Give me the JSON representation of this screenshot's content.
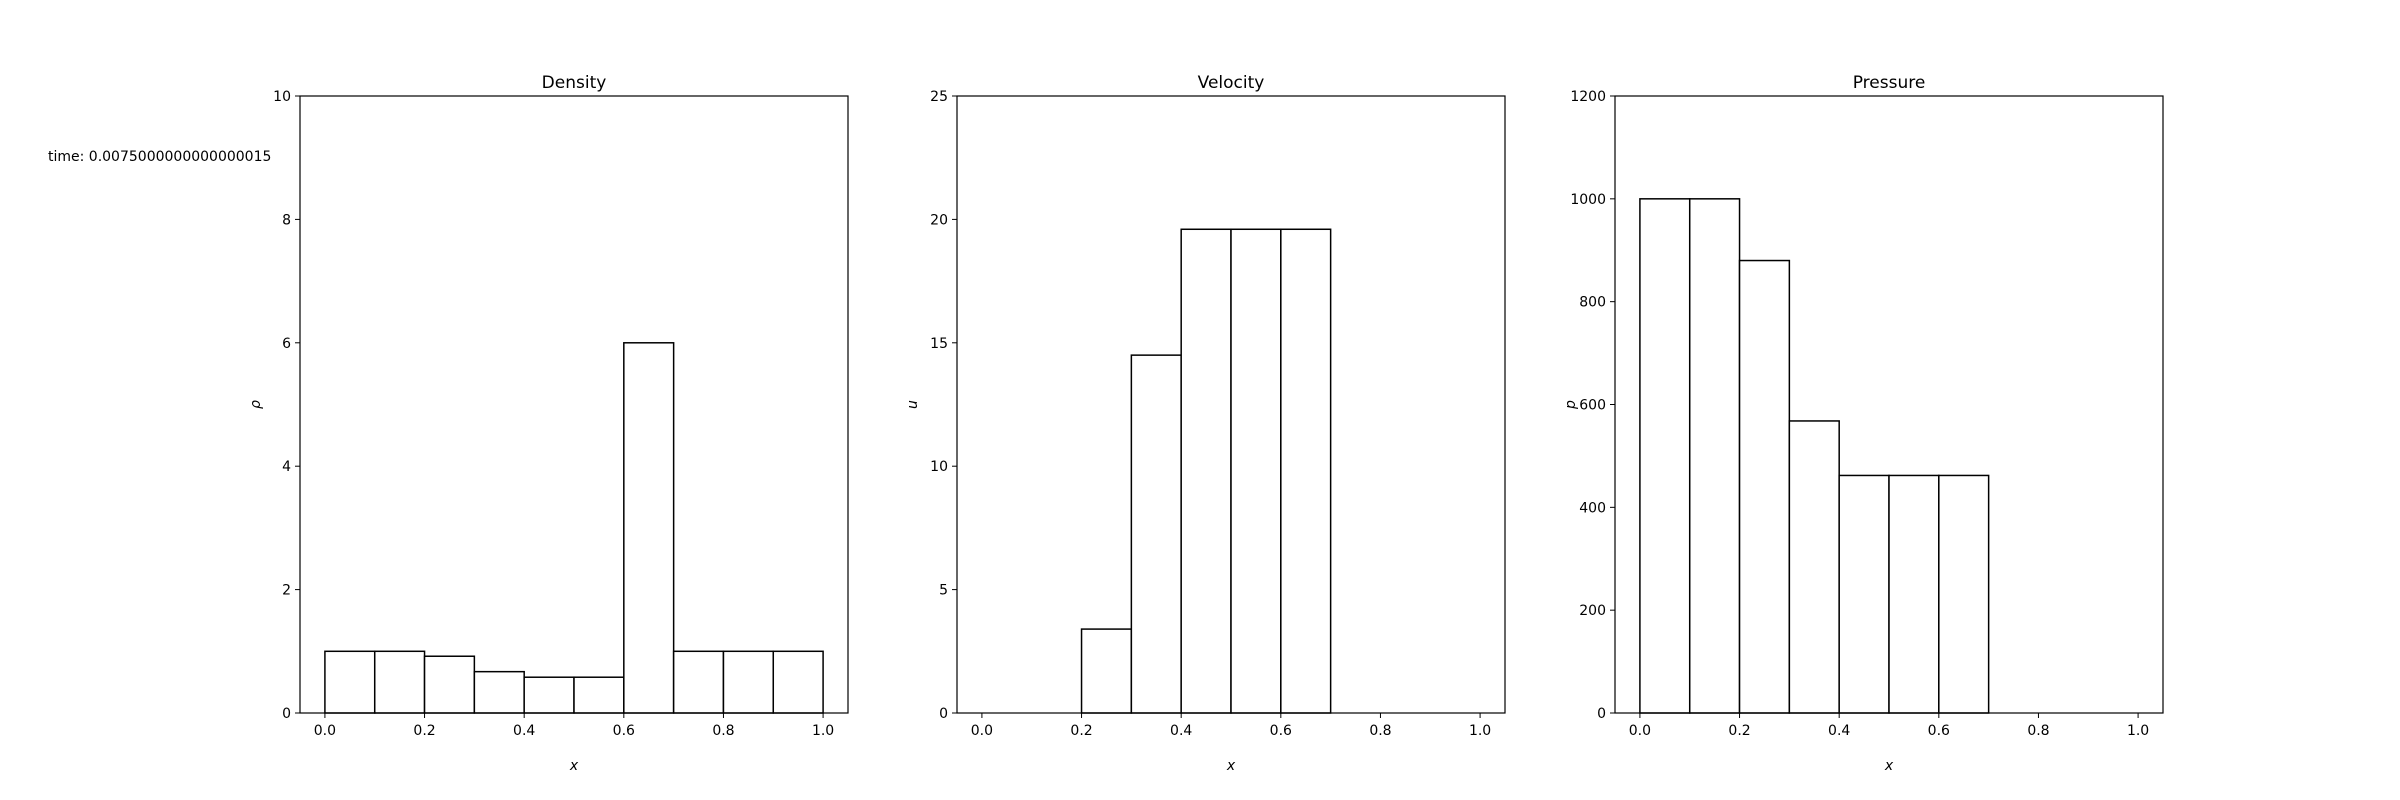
{
  "annotation": "time: 0.0075000000000000015",
  "colors": {
    "bar_fill": "#ffffff",
    "bar_edge": "#000000",
    "axes": "#000000"
  },
  "chart_data": [
    {
      "type": "bar",
      "title": "Density",
      "xlabel": "x",
      "ylabel": "ρ",
      "bin_edges": [
        0.0,
        0.1,
        0.2,
        0.3,
        0.4,
        0.5,
        0.6,
        0.7,
        0.8,
        0.9,
        1.0
      ],
      "values": [
        1.0,
        1.0,
        0.92,
        0.67,
        0.58,
        0.58,
        6.0,
        1.0,
        1.0,
        1.0
      ],
      "xlim": [
        -0.05,
        1.05
      ],
      "ylim": [
        0,
        10
      ],
      "xticks": [
        "0.0",
        "0.2",
        "0.4",
        "0.6",
        "0.8",
        "1.0"
      ],
      "yticks": [
        "0",
        "2",
        "4",
        "6",
        "8",
        "10"
      ],
      "grid": false
    },
    {
      "type": "bar",
      "title": "Velocity",
      "xlabel": "x",
      "ylabel": "u",
      "bin_edges": [
        0.0,
        0.1,
        0.2,
        0.3,
        0.4,
        0.5,
        0.6,
        0.7,
        0.8,
        0.9,
        1.0
      ],
      "values": [
        0.0,
        0.0,
        3.4,
        14.5,
        19.6,
        19.6,
        19.6,
        0.0,
        0.0,
        0.0
      ],
      "xlim": [
        -0.05,
        1.05
      ],
      "ylim": [
        0,
        25
      ],
      "xticks": [
        "0.0",
        "0.2",
        "0.4",
        "0.6",
        "0.8",
        "1.0"
      ],
      "yticks": [
        "0",
        "5",
        "10",
        "15",
        "20",
        "25"
      ],
      "grid": false
    },
    {
      "type": "bar",
      "title": "Pressure",
      "xlabel": "x",
      "ylabel": "p",
      "bin_edges": [
        0.0,
        0.1,
        0.2,
        0.3,
        0.4,
        0.5,
        0.6,
        0.7,
        0.8,
        0.9,
        1.0
      ],
      "values": [
        1000,
        1000,
        880,
        568,
        462,
        462,
        462,
        0,
        0,
        0
      ],
      "xlim": [
        -0.05,
        1.05
      ],
      "ylim": [
        0,
        1200
      ],
      "xticks": [
        "0.0",
        "0.2",
        "0.4",
        "0.6",
        "0.8",
        "1.0"
      ],
      "yticks": [
        "0",
        "200",
        "400",
        "600",
        "800",
        "1000",
        "1200"
      ],
      "grid": false
    }
  ]
}
